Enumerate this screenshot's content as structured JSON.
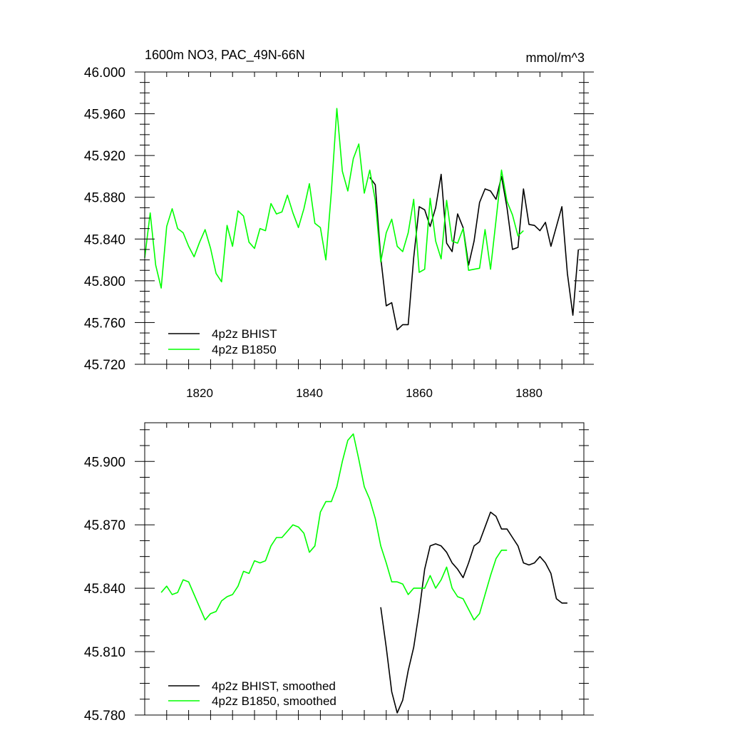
{
  "chart_data": [
    {
      "type": "line",
      "title": "1600m NO3, PAC_49N-66N",
      "units": "mmol/m^3",
      "xlim": [
        1810,
        1890
      ],
      "ylim": [
        45.72,
        46.0
      ],
      "xticks": [
        1820,
        1840,
        1860,
        1880
      ],
      "xtick_labels": [
        "1820",
        "1840",
        "1860",
        "1880"
      ],
      "yticks": [
        45.72,
        45.76,
        45.8,
        45.84,
        45.88,
        45.92,
        45.96,
        46.0
      ],
      "ytick_labels": [
        "45.720",
        "45.760",
        "45.800",
        "45.840",
        "45.880",
        "45.920",
        "45.960",
        "46.000"
      ],
      "legend_position": "bottom-left",
      "series": [
        {
          "name": "4p2z BHIST",
          "color": "#000000",
          "x": [
            1851,
            1852,
            1853,
            1854,
            1855,
            1856,
            1857,
            1858,
            1859,
            1860,
            1861,
            1862,
            1863,
            1864,
            1865,
            1866,
            1867,
            1868,
            1869,
            1870,
            1871,
            1872,
            1873,
            1874,
            1875,
            1876,
            1877,
            1878,
            1879,
            1880,
            1881,
            1882,
            1883,
            1884,
            1885,
            1886,
            1887,
            1888,
            1889
          ],
          "y": [
            45.899,
            45.892,
            45.822,
            45.776,
            45.779,
            45.753,
            45.758,
            45.758,
            45.822,
            45.871,
            45.868,
            45.852,
            45.87,
            45.902,
            45.836,
            45.828,
            45.864,
            45.851,
            45.815,
            45.838,
            45.875,
            45.888,
            45.886,
            45.878,
            45.9,
            45.87,
            45.83,
            45.832,
            45.888,
            45.854,
            45.853,
            45.848,
            45.856,
            45.833,
            45.852,
            45.871,
            45.807,
            45.767,
            45.83
          ]
        },
        {
          "name": "4p2z B1850",
          "color": "#00ff00",
          "x": [
            1810,
            1811,
            1812,
            1813,
            1814,
            1815,
            1816,
            1817,
            1818,
            1819,
            1820,
            1821,
            1822,
            1823,
            1824,
            1825,
            1826,
            1827,
            1828,
            1829,
            1830,
            1831,
            1832,
            1833,
            1834,
            1835,
            1836,
            1837,
            1838,
            1839,
            1840,
            1841,
            1842,
            1843,
            1844,
            1845,
            1846,
            1847,
            1848,
            1849,
            1850,
            1851,
            1852,
            1853,
            1854,
            1855,
            1856,
            1857,
            1858,
            1859,
            1860,
            1861,
            1862,
            1863,
            1864,
            1865,
            1866,
            1867,
            1868,
            1869,
            1870,
            1871,
            1872,
            1873,
            1874,
            1875,
            1876,
            1877,
            1878,
            1879
          ],
          "y": [
            45.822,
            45.865,
            45.815,
            45.793,
            45.852,
            45.869,
            45.85,
            45.846,
            45.833,
            45.823,
            45.837,
            45.849,
            45.831,
            45.807,
            45.799,
            45.853,
            45.833,
            45.867,
            45.862,
            45.837,
            45.831,
            45.85,
            45.848,
            45.874,
            45.864,
            45.866,
            45.882,
            45.865,
            45.851,
            45.869,
            45.893,
            45.855,
            45.851,
            45.82,
            45.885,
            45.965,
            45.905,
            45.886,
            45.917,
            45.931,
            45.884,
            45.906,
            45.877,
            45.818,
            45.846,
            45.859,
            45.833,
            45.828,
            45.846,
            45.878,
            45.808,
            45.811,
            45.879,
            45.838,
            45.821,
            45.877,
            45.838,
            45.836,
            45.85,
            45.81,
            45.811,
            45.812,
            45.849,
            45.811,
            45.858,
            45.906,
            45.876,
            45.863,
            45.843,
            45.848
          ]
        }
      ]
    },
    {
      "type": "line",
      "xlim": [
        1810,
        1890
      ],
      "ylim": [
        45.78,
        45.9183
      ],
      "xticks": [
        1820,
        1840,
        1860,
        1880
      ],
      "yticks": [
        45.78,
        45.81,
        45.84,
        45.87,
        45.9
      ],
      "ytick_labels": [
        "45.780",
        "45.810",
        "45.840",
        "45.870",
        "45.900"
      ],
      "legend_position": "bottom-left",
      "series": [
        {
          "name": "4p2z BHIST, smoothed",
          "color": "#000000",
          "x": [
            1853,
            1854,
            1855,
            1856,
            1857,
            1858,
            1859,
            1860,
            1861,
            1862,
            1863,
            1864,
            1865,
            1866,
            1867,
            1868,
            1869,
            1870,
            1871,
            1872,
            1873,
            1874,
            1875,
            1876,
            1877,
            1878,
            1879,
            1880,
            1881,
            1882,
            1883,
            1884,
            1885,
            1886,
            1887
          ],
          "y": [
            45.831,
            45.812,
            45.791,
            45.781,
            45.787,
            45.801,
            45.812,
            45.829,
            45.849,
            45.86,
            45.861,
            45.86,
            45.857,
            45.852,
            45.849,
            45.845,
            45.852,
            45.86,
            45.862,
            45.869,
            45.876,
            45.874,
            45.868,
            45.868,
            45.864,
            45.86,
            45.852,
            45.851,
            45.852,
            45.855,
            45.852,
            45.847,
            45.835,
            45.833,
            45.833
          ]
        },
        {
          "name": "4p2z B1850, smoothed",
          "color": "#00ff00",
          "x": [
            1813,
            1814,
            1815,
            1816,
            1817,
            1818,
            1819,
            1820,
            1821,
            1822,
            1823,
            1824,
            1825,
            1826,
            1827,
            1828,
            1829,
            1830,
            1831,
            1832,
            1833,
            1834,
            1835,
            1836,
            1837,
            1838,
            1839,
            1840,
            1841,
            1842,
            1843,
            1844,
            1845,
            1846,
            1847,
            1848,
            1849,
            1850,
            1851,
            1852,
            1853,
            1854,
            1855,
            1856,
            1857,
            1858,
            1859,
            1860,
            1861,
            1862,
            1863,
            1864,
            1865,
            1866,
            1867,
            1868,
            1869,
            1870,
            1871,
            1872,
            1873,
            1874,
            1875,
            1876
          ],
          "y": [
            45.838,
            45.841,
            45.837,
            45.838,
            45.844,
            45.843,
            45.837,
            45.831,
            45.825,
            45.828,
            45.829,
            45.834,
            45.836,
            45.837,
            45.841,
            45.848,
            45.847,
            45.853,
            45.852,
            45.853,
            45.86,
            45.864,
            45.864,
            45.867,
            45.87,
            45.869,
            45.866,
            45.857,
            45.86,
            45.876,
            45.881,
            45.881,
            45.888,
            45.9,
            45.91,
            45.913,
            45.901,
            45.888,
            45.882,
            45.873,
            45.86,
            45.852,
            45.843,
            45.843,
            45.842,
            45.837,
            45.84,
            45.84,
            45.84,
            45.846,
            45.84,
            45.844,
            45.85,
            45.84,
            45.836,
            45.835,
            45.83,
            45.825,
            45.828,
            45.837,
            45.846,
            45.854,
            45.858,
            45.858
          ]
        }
      ]
    }
  ]
}
